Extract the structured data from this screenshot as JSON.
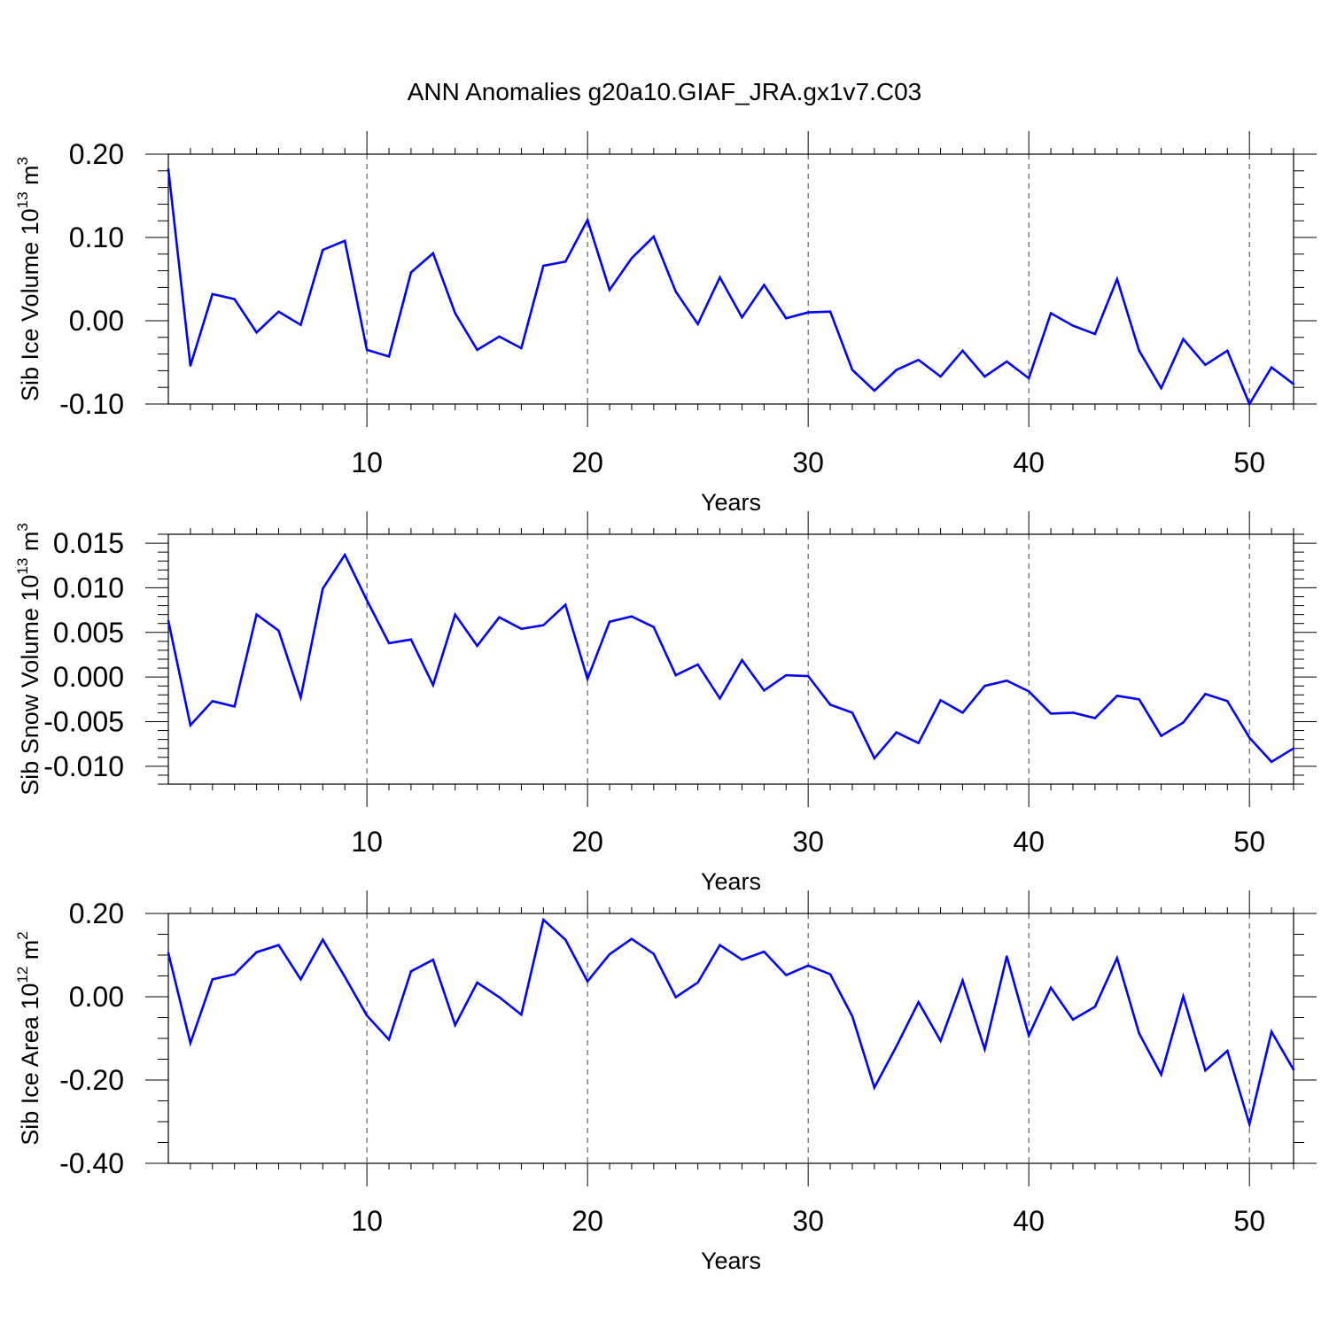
{
  "title": "ANN Anomalies g20a10.GIAF_JRA.gx1v7.C03",
  "colors": {
    "line": "#0000ff",
    "axis": "#000000",
    "grid": "#000000"
  },
  "chart_data": [
    {
      "type": "line",
      "name": "ice-volume",
      "ylabel": "Sib Ice Volume 10",
      "ylabel_exp": "13",
      "ylabel_unit": " m",
      "ylabel_unit_exp": "3",
      "xlabel": "Years",
      "xlim": [
        1,
        52
      ],
      "ylim": [
        -0.1,
        0.2
      ],
      "yticks": [
        -0.1,
        0.0,
        0.1,
        0.2
      ],
      "ytick_labels": [
        "-0.10",
        "0.00",
        "0.10",
        "0.20"
      ],
      "yminor": 0.02,
      "xticks": [
        10,
        20,
        30,
        40,
        50
      ],
      "xtick_labels": [
        "10",
        "20",
        "30",
        "40",
        "50"
      ],
      "grid_x": [
        10,
        20,
        30,
        40,
        50
      ],
      "series": [
        {
          "name": "Sib Ice Volume",
          "x": [
            1,
            2,
            3,
            4,
            5,
            6,
            7,
            8,
            9,
            10,
            11,
            12,
            13,
            14,
            15,
            16,
            17,
            18,
            19,
            20,
            21,
            22,
            23,
            24,
            25,
            26,
            27,
            28,
            29,
            30,
            31,
            32,
            33,
            34,
            35,
            36,
            37,
            38,
            39,
            40,
            41,
            42,
            43,
            44,
            45,
            46,
            47,
            48,
            49,
            50,
            51,
            52
          ],
          "values": [
            0.182,
            -0.054,
            0.032,
            0.026,
            -0.014,
            0.011,
            -0.005,
            0.085,
            0.096,
            -0.035,
            -0.043,
            0.058,
            0.081,
            0.009,
            -0.035,
            -0.019,
            -0.033,
            0.066,
            0.071,
            0.121,
            0.037,
            0.075,
            0.101,
            0.035,
            -0.004,
            0.052,
            0.004,
            0.043,
            0.003,
            0.01,
            0.011,
            -0.059,
            -0.084,
            -0.059,
            -0.047,
            -0.067,
            -0.036,
            -0.067,
            -0.049,
            -0.069,
            0.009,
            -0.006,
            -0.016,
            0.05,
            -0.036,
            -0.081,
            -0.022,
            -0.053,
            -0.036,
            -0.1,
            -0.056,
            -0.076
          ]
        }
      ]
    },
    {
      "type": "line",
      "name": "snow-volume",
      "ylabel": "Sib Snow Volume 10",
      "ylabel_exp": "13",
      "ylabel_unit": " m",
      "ylabel_unit_exp": "3",
      "xlabel": "Years",
      "xlim": [
        1,
        52
      ],
      "ylim": [
        -0.012,
        0.016
      ],
      "yticks": [
        -0.01,
        -0.005,
        0.0,
        0.005,
        0.01,
        0.015
      ],
      "ytick_labels": [
        "-0.010",
        "-0.005",
        "0.000",
        "0.005",
        "0.010",
        "0.015"
      ],
      "yminor": 0.001,
      "xticks": [
        10,
        20,
        30,
        40,
        50
      ],
      "xtick_labels": [
        "10",
        "20",
        "30",
        "40",
        "50"
      ],
      "grid_x": [
        10,
        20,
        30,
        40,
        50
      ],
      "series": [
        {
          "name": "Sib Snow Volume",
          "x": [
            1,
            2,
            3,
            4,
            5,
            6,
            7,
            8,
            9,
            10,
            11,
            12,
            13,
            14,
            15,
            16,
            17,
            18,
            19,
            20,
            21,
            22,
            23,
            24,
            25,
            26,
            27,
            28,
            29,
            30,
            31,
            32,
            33,
            34,
            35,
            36,
            37,
            38,
            39,
            40,
            41,
            42,
            43,
            44,
            45,
            46,
            47,
            48,
            49,
            50,
            51,
            52
          ],
          "values": [
            0.0063,
            -0.0054,
            -0.0027,
            -0.0033,
            0.007,
            0.0052,
            -0.0023,
            0.0099,
            0.0137,
            0.0086,
            0.0038,
            0.0042,
            -0.0009,
            0.007,
            0.0035,
            0.0067,
            0.0054,
            0.0058,
            0.0081,
            -0.0002,
            0.0062,
            0.0068,
            0.0056,
            0.0002,
            0.0014,
            -0.0024,
            0.0019,
            -0.0015,
            0.0002,
            0.0001,
            -0.0031,
            -0.004,
            -0.0091,
            -0.0062,
            -0.0074,
            -0.0026,
            -0.004,
            -0.001,
            -0.0004,
            -0.0016,
            -0.0041,
            -0.004,
            -0.0046,
            -0.0021,
            -0.0025,
            -0.0066,
            -0.0051,
            -0.0019,
            -0.0027,
            -0.0068,
            -0.0095,
            -0.008
          ]
        }
      ]
    },
    {
      "type": "line",
      "name": "ice-area",
      "ylabel": "Sib Ice Area 10",
      "ylabel_exp": "12",
      "ylabel_unit": " m",
      "ylabel_unit_exp": "2",
      "xlabel": "Years",
      "xlim": [
        1,
        52
      ],
      "ylim": [
        -0.4,
        0.2
      ],
      "yticks": [
        -0.4,
        -0.2,
        0.0,
        0.2
      ],
      "ytick_labels": [
        "-0.40",
        "-0.20",
        "0.00",
        "0.20"
      ],
      "yminor": 0.05,
      "xticks": [
        10,
        20,
        30,
        40,
        50
      ],
      "xtick_labels": [
        "10",
        "20",
        "30",
        "40",
        "50"
      ],
      "grid_x": [
        10,
        20,
        30,
        40,
        50
      ],
      "series": [
        {
          "name": "Sib Ice Area",
          "x": [
            1,
            2,
            3,
            4,
            5,
            6,
            7,
            8,
            9,
            10,
            11,
            12,
            13,
            14,
            15,
            16,
            17,
            18,
            19,
            20,
            21,
            22,
            23,
            24,
            25,
            26,
            27,
            28,
            29,
            30,
            31,
            32,
            33,
            34,
            35,
            36,
            37,
            38,
            39,
            40,
            41,
            42,
            43,
            44,
            45,
            46,
            47,
            48,
            49,
            50,
            51,
            52
          ],
          "values": [
            0.105,
            -0.111,
            0.042,
            0.054,
            0.107,
            0.124,
            0.042,
            0.137,
            0.048,
            -0.045,
            -0.103,
            0.061,
            0.089,
            -0.068,
            0.034,
            -0.001,
            -0.043,
            0.185,
            0.137,
            0.037,
            0.102,
            0.139,
            0.103,
            -0.001,
            0.034,
            0.124,
            0.089,
            0.108,
            0.052,
            0.075,
            0.054,
            -0.047,
            -0.218,
            -0.119,
            -0.013,
            -0.106,
            0.039,
            -0.126,
            0.097,
            -0.093,
            0.022,
            -0.055,
            -0.024,
            0.093,
            -0.088,
            -0.187,
            0.001,
            -0.177,
            -0.13,
            -0.306,
            -0.084,
            -0.175
          ]
        }
      ]
    }
  ]
}
